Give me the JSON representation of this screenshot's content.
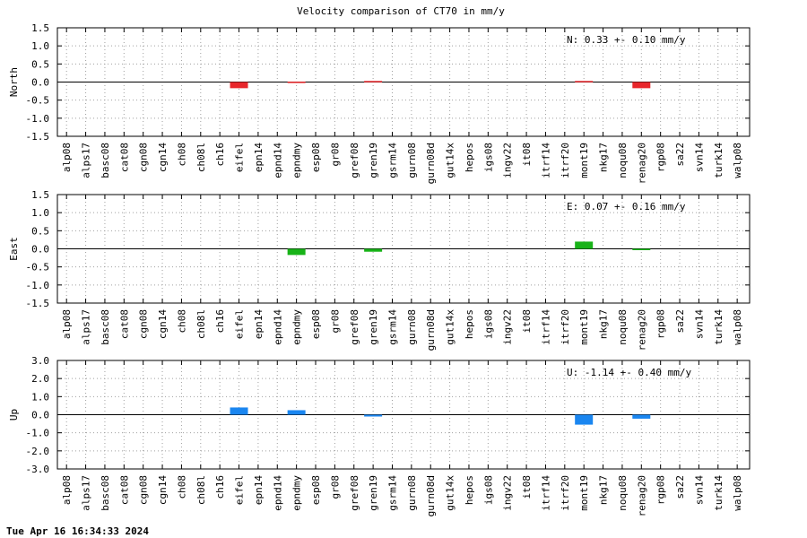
{
  "chart_data": {
    "type": "bar",
    "title": "Velocity comparison of CT70 in mm/y",
    "timestamp": "Tue Apr 16 16:34:33 2024",
    "grid": true,
    "categories": [
      "alp08",
      "alps17",
      "basc08",
      "cat08",
      "cgn08",
      "cgn14",
      "ch08",
      "ch08l",
      "ch16",
      "eifel",
      "epn14",
      "epnd14",
      "epndmy",
      "esp08",
      "gr08",
      "gref08",
      "gren19",
      "gsrm14",
      "gurn08",
      "gurn08d",
      "gut14x",
      "hepos",
      "igs08",
      "ingv22",
      "it08",
      "itrf14",
      "itrf20",
      "mont19",
      "nkg17",
      "noqu08",
      "renag20",
      "rgp08",
      "sa22",
      "svn14",
      "turk14",
      "walp08"
    ],
    "panels": [
      {
        "name": "North",
        "ylabel": "North",
        "ylim": [
          -1.5,
          1.5
        ],
        "yticks": [
          "1.5",
          "1.0",
          "0.5",
          "0.0",
          "-0.5",
          "-1.0",
          "-1.5"
        ],
        "annotation": "N:   0.33 +-  0.10 mm/y",
        "color": "#e8262b",
        "values": [
          0,
          0,
          0,
          0,
          0,
          0,
          0,
          0,
          0,
          -0.17,
          0,
          0,
          0.01,
          0,
          0,
          0,
          0.03,
          0,
          0,
          0,
          0,
          0,
          0,
          0,
          0,
          0,
          0,
          0.03,
          0,
          0,
          -0.17,
          0,
          0,
          0,
          0,
          0
        ]
      },
      {
        "name": "East",
        "ylabel": "East",
        "ylim": [
          -1.5,
          1.5
        ],
        "yticks": [
          "1.5",
          "1.0",
          "0.5",
          "0.0",
          "-0.5",
          "-1.0",
          "-1.5"
        ],
        "annotation": "E:   0.07 +-  0.16 mm/y",
        "color": "#18b318",
        "values": [
          0,
          0,
          0,
          0,
          0,
          0,
          0,
          0,
          0,
          0,
          0,
          0,
          -0.17,
          0,
          0,
          0,
          -0.08,
          0,
          0,
          0,
          0,
          0,
          0,
          0,
          0,
          0,
          0,
          0.2,
          0,
          0,
          -0.02,
          0,
          0,
          0,
          0,
          0
        ]
      },
      {
        "name": "Up",
        "ylabel": "Up",
        "ylim": [
          -3.0,
          3.0
        ],
        "yticks": [
          "3.0",
          "2.0",
          "1.0",
          "0.0",
          "-1.0",
          "-2.0",
          "-3.0"
        ],
        "annotation": "U:  -1.14 +-  0.40 mm/y",
        "color": "#1a86f0",
        "values": [
          0,
          0,
          0,
          0,
          0,
          0,
          0,
          0,
          0,
          0.4,
          0,
          0,
          0.25,
          0,
          0,
          0,
          -0.1,
          0,
          0,
          0,
          0,
          0,
          0,
          0,
          0,
          0,
          0,
          -0.55,
          0,
          0,
          -0.22,
          0,
          0,
          0,
          0,
          0
        ]
      }
    ]
  }
}
